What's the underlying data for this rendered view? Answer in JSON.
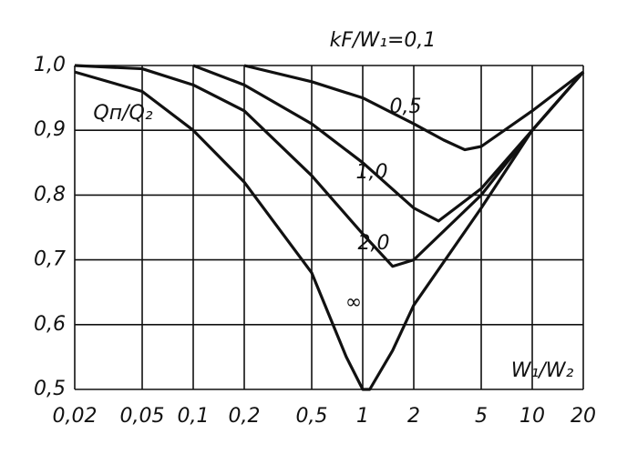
{
  "chart_data": {
    "type": "line",
    "title": "kF/W₁=0,1",
    "y_label": "Qп/Q₂",
    "x_label": "W₁/W₂",
    "log_x": true,
    "grid": true,
    "color": "#111111",
    "xlim": [
      0.02,
      20
    ],
    "ylim": [
      0.5,
      1.0
    ],
    "xticks": [
      {
        "value": 0.02,
        "label": "0,02"
      },
      {
        "value": 0.05,
        "label": "0,05"
      },
      {
        "value": 0.1,
        "label": "0,1"
      },
      {
        "value": 0.2,
        "label": "0,2"
      },
      {
        "value": 0.5,
        "label": "0,5"
      },
      1,
      2,
      5,
      10,
      20
    ],
    "yticks": [
      {
        "value": 0.5,
        "label": "0,5"
      },
      {
        "value": 0.6,
        "label": "0,6"
      },
      {
        "value": 0.7,
        "label": "0,7"
      },
      {
        "value": 0.8,
        "label": "0,8"
      },
      {
        "value": 0.9,
        "label": "0,9"
      },
      {
        "value": 1.0,
        "label": "1,0"
      }
    ],
    "series": [
      {
        "name": "0,5",
        "x": [
          0.2,
          0.5,
          1,
          2,
          3,
          4,
          5,
          10,
          20
        ],
        "values": [
          1.0,
          0.975,
          0.95,
          0.91,
          0.885,
          0.87,
          0.875,
          0.93,
          0.99
        ]
      },
      {
        "name": "1,0",
        "x": [
          0.1,
          0.2,
          0.5,
          1,
          2,
          2.8,
          5,
          10,
          20
        ],
        "values": [
          1.0,
          0.97,
          0.91,
          0.85,
          0.78,
          0.76,
          0.81,
          0.9,
          0.99
        ]
      },
      {
        "name": "2,0",
        "x": [
          0.02,
          0.05,
          0.1,
          0.2,
          0.5,
          1,
          1.5,
          2,
          5,
          10,
          20
        ],
        "values": [
          1.0,
          0.995,
          0.97,
          0.93,
          0.83,
          0.74,
          0.69,
          0.7,
          0.8,
          0.9,
          0.99
        ]
      },
      {
        "name": "∞",
        "x": [
          0.02,
          0.05,
          0.1,
          0.2,
          0.5,
          0.8,
          1,
          1.1,
          1.5,
          2,
          5,
          10,
          20
        ],
        "values": [
          0.99,
          0.96,
          0.9,
          0.82,
          0.68,
          0.55,
          0.5,
          0.5,
          0.56,
          0.63,
          0.78,
          0.9,
          0.99
        ]
      }
    ]
  }
}
